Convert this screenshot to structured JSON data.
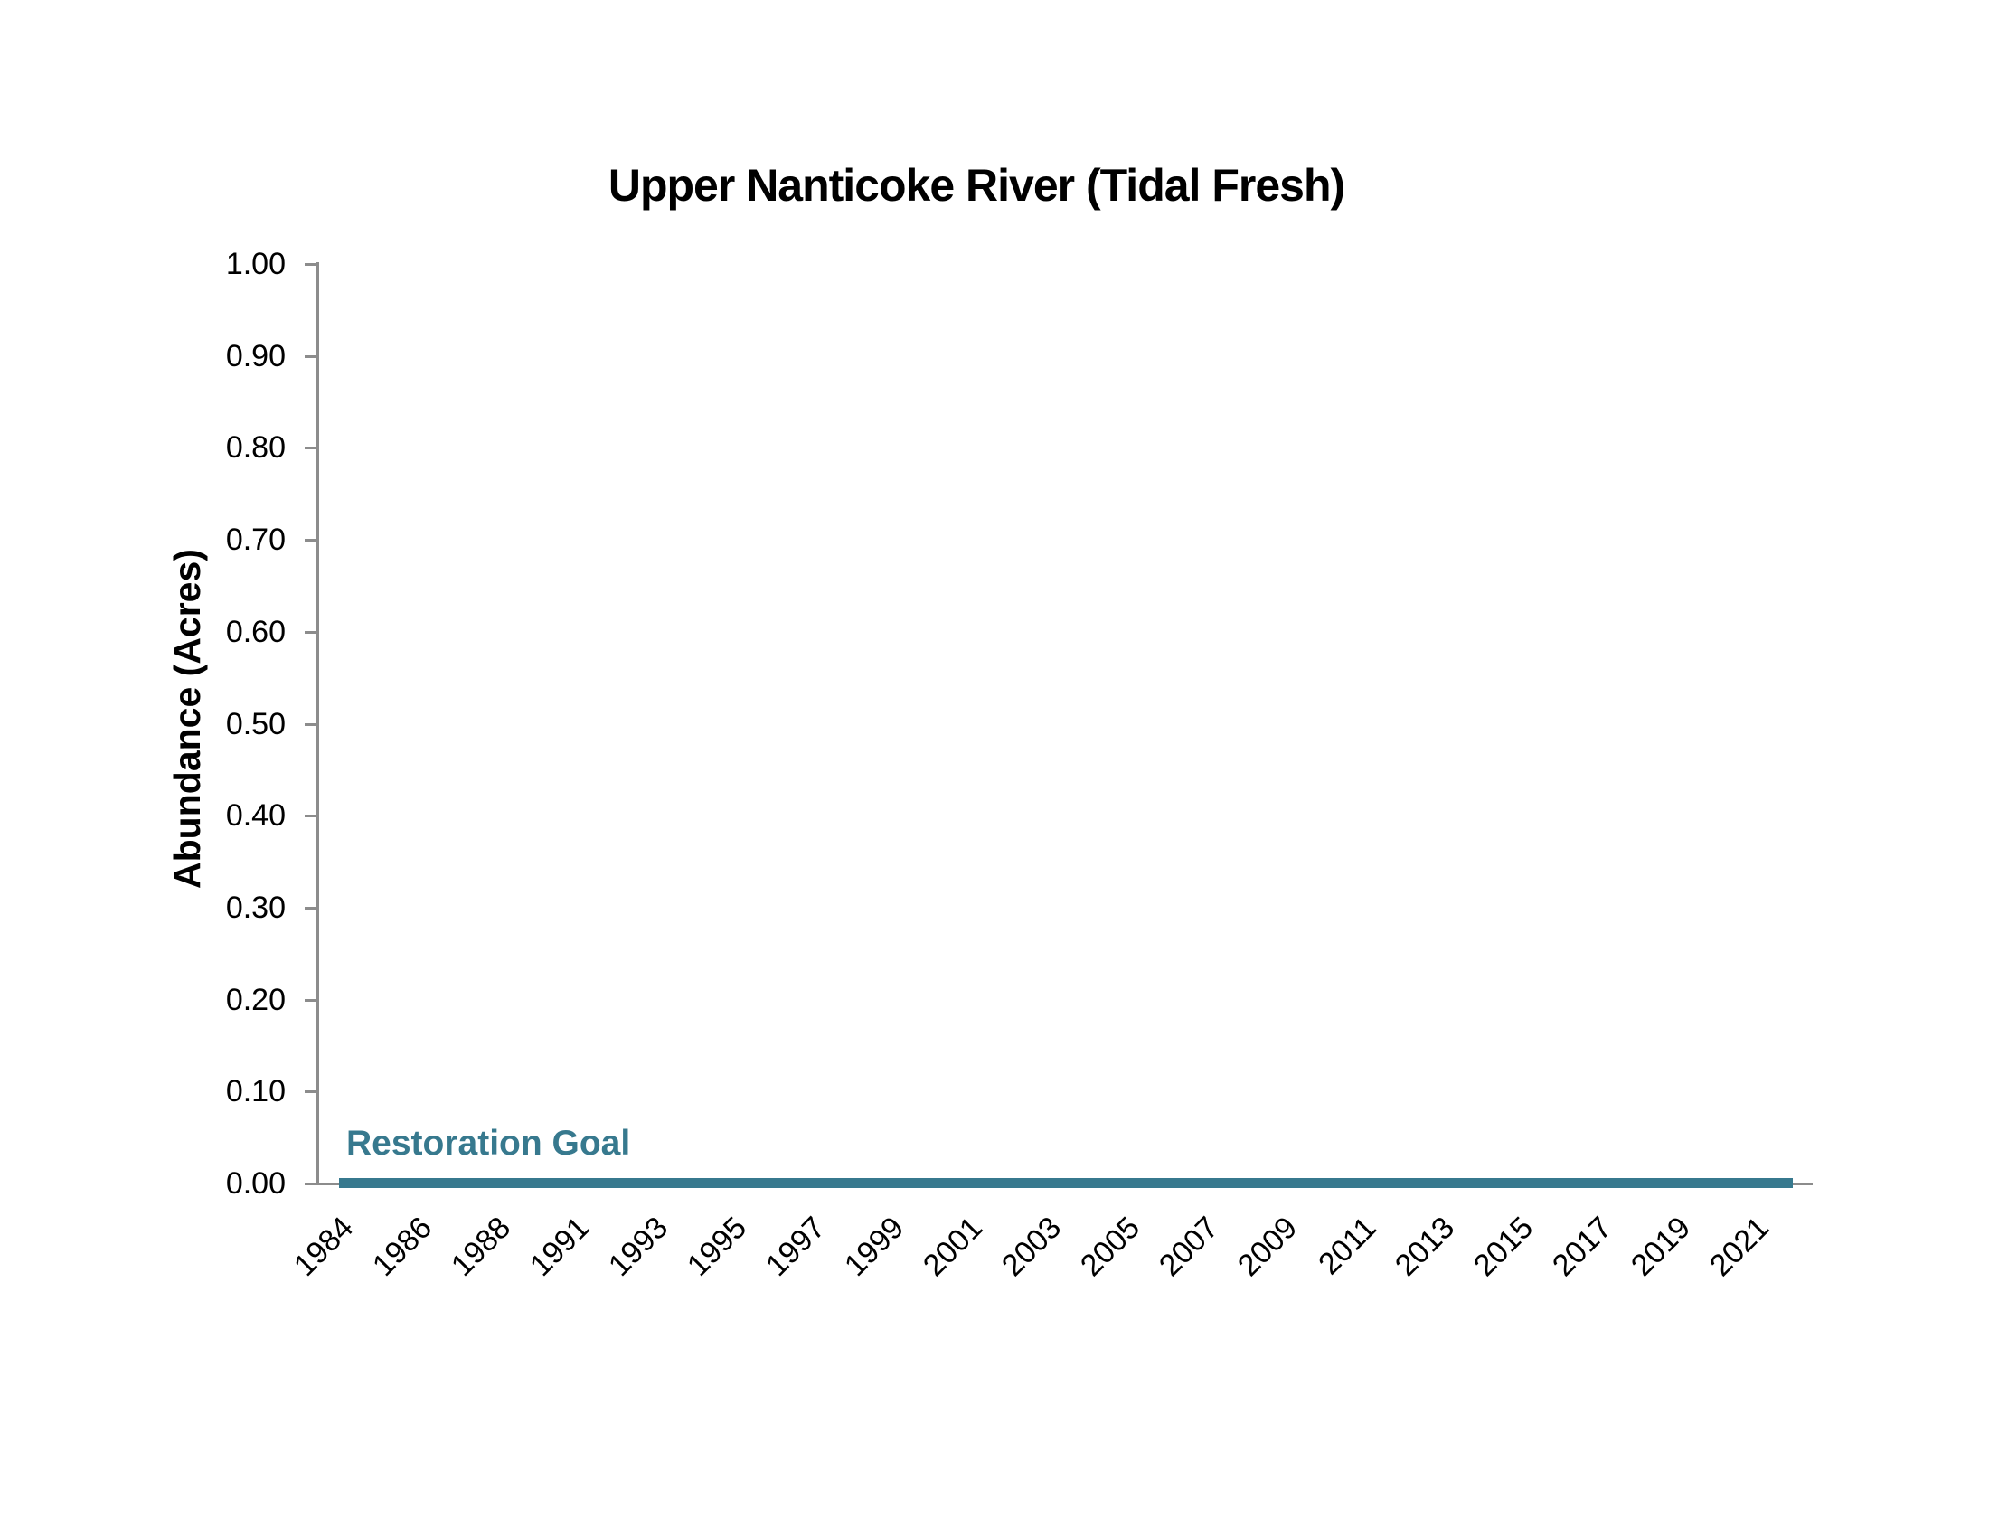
{
  "chart": {
    "title": "Upper Nanticoke River (Tidal Fresh)",
    "y_axis": {
      "label": "Abundance (Acres)",
      "ticks": [
        "0.00",
        "0.10",
        "0.20",
        "0.30",
        "0.40",
        "0.50",
        "0.60",
        "0.70",
        "0.80",
        "0.90",
        "1.00"
      ]
    },
    "x_axis": {
      "ticks": [
        "1984",
        "1986",
        "1988",
        "1991",
        "1993",
        "1995",
        "1997",
        "1999",
        "2001",
        "2003",
        "2005",
        "2007",
        "2009",
        "2011",
        "2013",
        "2015",
        "2017",
        "2019",
        "2021"
      ]
    },
    "goal": {
      "label": "Restoration Goal"
    },
    "colors": {
      "goal_teal": "#37798E",
      "axis_gray": "#8C8C8C",
      "text_black": "#000000",
      "background": "#FFFFFF"
    }
  },
  "chart_data": {
    "type": "line",
    "title": "Upper Nanticoke River (Tidal Fresh)",
    "xlabel": "",
    "ylabel": "Abundance (Acres)",
    "ylim": [
      0.0,
      1.0
    ],
    "ytick_interval": 0.1,
    "ytick_labels": [
      "0.00",
      "0.10",
      "0.20",
      "0.30",
      "0.40",
      "0.50",
      "0.60",
      "0.70",
      "0.80",
      "0.90",
      "1.00"
    ],
    "xtick_labels": [
      "1984",
      "1986",
      "1988",
      "1991",
      "1993",
      "1995",
      "1997",
      "1999",
      "2001",
      "2003",
      "2005",
      "2007",
      "2009",
      "2011",
      "2013",
      "2015",
      "2017",
      "2019",
      "2021"
    ],
    "grid": false,
    "legend_position": "none",
    "series": [
      {
        "name": "Restoration Goal",
        "type": "horizontal-line",
        "color": "#37798E",
        "constant_y": 0.0,
        "x_span": [
          "1984",
          "2021"
        ],
        "label_annotation": "Restoration Goal"
      }
    ],
    "abundance_values_visible": "none above 0.00"
  }
}
